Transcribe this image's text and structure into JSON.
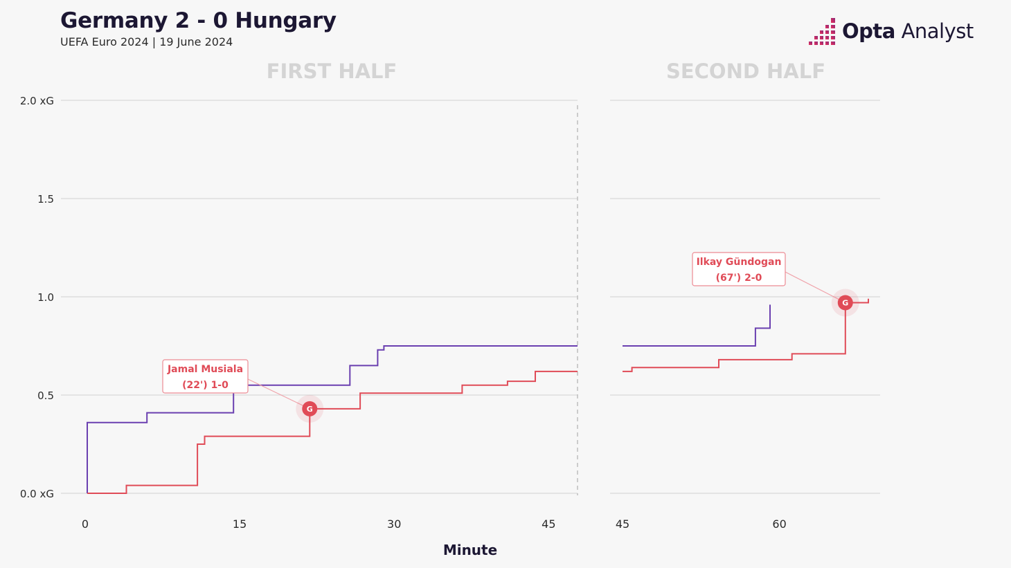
{
  "header": {
    "title": "Germany 2 - 0 Hungary",
    "subtitle": "UEFA Euro 2024 | 19 June 2024"
  },
  "logo": {
    "brand": "Opta",
    "product": "Analyst",
    "icon": "opta-bars-icon"
  },
  "colors": {
    "germany": "#e04b57",
    "hungary": "#6a3fb0",
    "grid": "#dedede",
    "background": "#f7f7f7",
    "logo_gradient": [
      "#e82e5a",
      "#8c2a7a"
    ]
  },
  "chart_data": {
    "type": "line",
    "step": true,
    "xlabel": "Minute",
    "ylim": [
      0,
      2.0
    ],
    "yticks": [
      {
        "value": 0.0,
        "label": "0.0 xG"
      },
      {
        "value": 0.5,
        "label": "0.5"
      },
      {
        "value": 1.0,
        "label": "1.0"
      },
      {
        "value": 1.5,
        "label": "1.5"
      },
      {
        "value": 2.0,
        "label": "2.0 xG"
      }
    ],
    "grid": true,
    "panels": [
      {
        "title": "FIRST HALF",
        "xlim": [
          0,
          47.8
        ],
        "xticks": [
          0,
          15,
          30,
          45
        ],
        "series": [
          {
            "team": "hungary",
            "points": [
              [
                0.2,
                0.0
              ],
              [
                0.2,
                0.36
              ],
              [
                6,
                0.36
              ],
              [
                6,
                0.41
              ],
              [
                14.4,
                0.41
              ],
              [
                14.4,
                0.55
              ],
              [
                25.7,
                0.55
              ],
              [
                25.7,
                0.65
              ],
              [
                28.4,
                0.65
              ],
              [
                28.4,
                0.73
              ],
              [
                29,
                0.73
              ],
              [
                29,
                0.75
              ],
              [
                47.8,
                0.75
              ]
            ]
          },
          {
            "team": "germany",
            "points": [
              [
                0.2,
                0.0
              ],
              [
                4,
                0.0
              ],
              [
                4,
                0.04
              ],
              [
                10.9,
                0.04
              ],
              [
                10.9,
                0.25
              ],
              [
                11.6,
                0.25
              ],
              [
                11.6,
                0.29
              ],
              [
                21.8,
                0.29
              ],
              [
                21.8,
                0.43
              ],
              [
                26.7,
                0.43
              ],
              [
                26.7,
                0.51
              ],
              [
                36.6,
                0.51
              ],
              [
                36.6,
                0.55
              ],
              [
                41,
                0.55
              ],
              [
                41,
                0.57
              ],
              [
                43.7,
                0.57
              ],
              [
                43.7,
                0.62
              ],
              [
                47.8,
                0.62
              ]
            ]
          }
        ],
        "goals": [
          {
            "minute": 21.8,
            "xg": 0.43,
            "marker": "G",
            "player": "Jamal Musiala",
            "detail": "(22') 1-0"
          }
        ],
        "halftime_line": 47.8
      },
      {
        "title": "SECOND HALF",
        "xlim": [
          45,
          68.5
        ],
        "xticks": [
          45,
          60
        ],
        "series": [
          {
            "team": "hungary",
            "points": [
              [
                45,
                0.75
              ],
              [
                57.7,
                0.75
              ],
              [
                57.7,
                0.84
              ],
              [
                59.1,
                0.84
              ],
              [
                59.1,
                0.96
              ]
            ]
          },
          {
            "team": "germany",
            "points": [
              [
                45,
                0.62
              ],
              [
                45.9,
                0.62
              ],
              [
                45.9,
                0.64
              ],
              [
                54.2,
                0.64
              ],
              [
                54.2,
                0.68
              ],
              [
                61.2,
                0.68
              ],
              [
                61.2,
                0.71
              ],
              [
                66.3,
                0.71
              ],
              [
                66.3,
                0.97
              ],
              [
                68.5,
                0.97
              ],
              [
                68.5,
                0.99
              ]
            ]
          }
        ],
        "goals": [
          {
            "minute": 66.3,
            "xg": 0.97,
            "marker": "G",
            "player": "Ilkay Gündogan",
            "detail": "(67') 2-0"
          }
        ]
      }
    ]
  }
}
